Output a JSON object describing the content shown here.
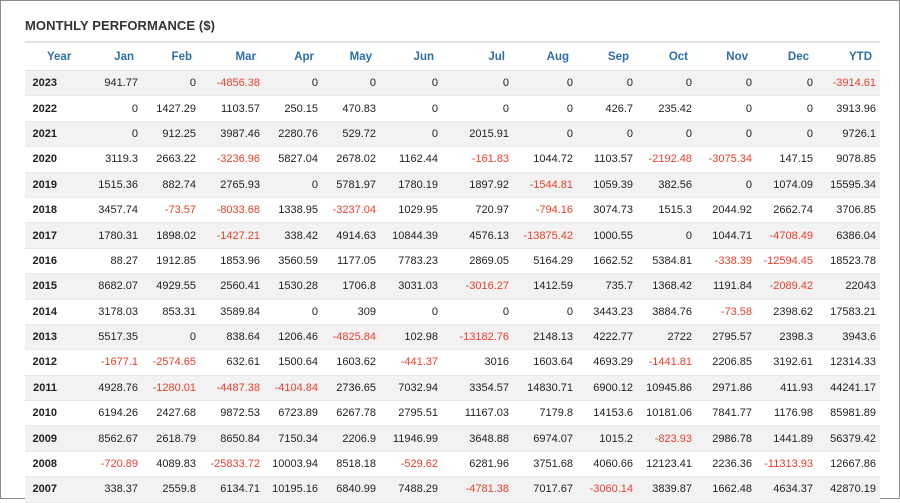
{
  "title": "MONTHLY PERFORMANCE ($)",
  "colors": {
    "header_text": "#2f6fa8",
    "negative": "#e8412d",
    "stripe": "#f2f2f2"
  },
  "columns": [
    "Year",
    "Jan",
    "Feb",
    "Mar",
    "Apr",
    "May",
    "Jun",
    "Jul",
    "Aug",
    "Sep",
    "Oct",
    "Nov",
    "Dec",
    "YTD"
  ],
  "rows": [
    [
      "2023",
      "941.77",
      "0",
      "-4856.38",
      "0",
      "0",
      "0",
      "0",
      "0",
      "0",
      "0",
      "0",
      "0",
      "-3914.61"
    ],
    [
      "2022",
      "0",
      "1427.29",
      "1103.57",
      "250.15",
      "470.83",
      "0",
      "0",
      "0",
      "426.7",
      "235.42",
      "0",
      "0",
      "3913.96"
    ],
    [
      "2021",
      "0",
      "912.25",
      "3987.46",
      "2280.76",
      "529.72",
      "0",
      "2015.91",
      "0",
      "0",
      "0",
      "0",
      "0",
      "9726.1"
    ],
    [
      "2020",
      "3119.3",
      "2663.22",
      "-3236.96",
      "5827.04",
      "2678.02",
      "1162.44",
      "-161.83",
      "1044.72",
      "1103.57",
      "-2192.48",
      "-3075.34",
      "147.15",
      "9078.85"
    ],
    [
      "2019",
      "1515.36",
      "882.74",
      "2765.93",
      "0",
      "5781.97",
      "1780.19",
      "1897.92",
      "-1544.81",
      "1059.39",
      "382.56",
      "0",
      "1074.09",
      "15595.34"
    ],
    [
      "2018",
      "3457.74",
      "-73.57",
      "-8033.68",
      "1338.95",
      "-3237.04",
      "1029.95",
      "720.97",
      "-794.16",
      "3074.73",
      "1515.3",
      "2044.92",
      "2662.74",
      "3706.85"
    ],
    [
      "2017",
      "1780.31",
      "1898.02",
      "-1427.21",
      "338.42",
      "4914.63",
      "10844.39",
      "4576.13",
      "-13875.42",
      "1000.55",
      "0",
      "1044.71",
      "-4708.49",
      "6386.04"
    ],
    [
      "2016",
      "88.27",
      "1912.85",
      "1853.96",
      "3560.59",
      "1177.05",
      "7783.23",
      "2869.05",
      "5164.29",
      "1662.52",
      "5384.81",
      "-338.39",
      "-12594.45",
      "18523.78"
    ],
    [
      "2015",
      "8682.07",
      "4929.55",
      "2560.41",
      "1530.28",
      "1706.8",
      "3031.03",
      "-3016.27",
      "1412.59",
      "735.7",
      "1368.42",
      "1191.84",
      "-2089.42",
      "22043"
    ],
    [
      "2014",
      "3178.03",
      "853.31",
      "3589.84",
      "0",
      "309",
      "0",
      "0",
      "0",
      "3443.23",
      "3884.76",
      "-73.58",
      "2398.62",
      "17583.21"
    ],
    [
      "2013",
      "5517.35",
      "0",
      "838.64",
      "1206.46",
      "-4825.84",
      "102.98",
      "-13182.76",
      "2148.13",
      "4222.77",
      "2722",
      "2795.57",
      "2398.3",
      "3943.6"
    ],
    [
      "2012",
      "-1677.1",
      "-2574.65",
      "632.61",
      "1500.64",
      "1603.62",
      "-441.37",
      "3016",
      "1603.64",
      "4693.29",
      "-1441.81",
      "2206.85",
      "3192.61",
      "12314.33"
    ],
    [
      "2011",
      "4928.76",
      "-1280.01",
      "-4487.38",
      "-4104.84",
      "2736.65",
      "7032.94",
      "3354.57",
      "14830.71",
      "6900.12",
      "10945.86",
      "2971.86",
      "411.93",
      "44241.17"
    ],
    [
      "2010",
      "6194.26",
      "2427.68",
      "9872.53",
      "6723.89",
      "6267.78",
      "2795.51",
      "11167.03",
      "7179.8",
      "14153.6",
      "10181.06",
      "7841.77",
      "1176.98",
      "85981.89"
    ],
    [
      "2009",
      "8562.67",
      "2618.79",
      "8650.84",
      "7150.34",
      "2206.9",
      "11946.99",
      "3648.88",
      "6974.07",
      "1015.2",
      "-823.93",
      "2986.78",
      "1441.89",
      "56379.42"
    ],
    [
      "2008",
      "-720.89",
      "4089.83",
      "-25833.72",
      "10003.94",
      "8518.18",
      "-529.62",
      "6281.96",
      "3751.68",
      "4060.66",
      "12123.41",
      "2236.36",
      "-11313.93",
      "12667.86"
    ],
    [
      "2007",
      "338.37",
      "2559.8",
      "6134.71",
      "10195.16",
      "6840.99",
      "7488.29",
      "-4781.38",
      "7017.67",
      "-3060.14",
      "3839.87",
      "1662.48",
      "4634.37",
      "42870.19"
    ]
  ]
}
